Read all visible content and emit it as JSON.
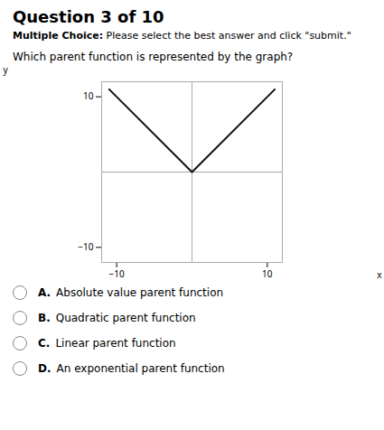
{
  "chart_data": {
    "type": "line",
    "title": "Question 3 of 10",
    "subtitle": "Multiple Choice: Please select the best answer and click \"submit.\"",
    "annotations": [
      "Which parent function is represented by the graph?",
      "A. Absolute value parent function",
      "B. Quadratic parent function",
      "C. Linear parent function",
      "D. An exponential parent function"
    ],
    "x_label": "x",
    "y_label": "y",
    "x": [
      -11,
      0,
      11
    ],
    "values": [
      11,
      0,
      11
    ],
    "color": "#111111",
    "xlim": [
      -12,
      12
    ],
    "ylim": [
      -12,
      12
    ],
    "xticks": [
      -10,
      10
    ],
    "yticks": [
      -10,
      10
    ],
    "grid": false
  }
}
